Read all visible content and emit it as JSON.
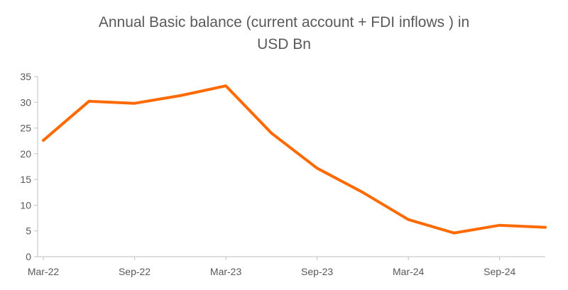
{
  "chart_data": {
    "type": "line",
    "title_line1": "Annual Basic balance (current account + FDI inflows ) in",
    "title_line2": "USD Bn",
    "xlabel": "",
    "ylabel": "",
    "ylim": [
      0,
      35
    ],
    "yticks": [
      0,
      5,
      10,
      15,
      20,
      25,
      30,
      35
    ],
    "x": [
      "Mar-22",
      "Jun-22",
      "Sep-22",
      "Dec-22",
      "Mar-23",
      "Jun-23",
      "Sep-23",
      "Dec-23",
      "Mar-24",
      "Jun-24",
      "Sep-24",
      "Dec-24"
    ],
    "x_tick_labels": [
      "Mar-22",
      "Sep-22",
      "Mar-23",
      "Sep-23",
      "Mar-24",
      "Sep-24"
    ],
    "series": [
      {
        "values": [
          22.6,
          30.2,
          29.8,
          31.3,
          33.2,
          24.0,
          17.2,
          12.5,
          7.2,
          4.6,
          6.1,
          5.7
        ]
      }
    ],
    "grid": false,
    "legend": "none",
    "line_color": "#FF6A00",
    "axis_color": "#BFBFBF",
    "text_color": "#595959"
  }
}
